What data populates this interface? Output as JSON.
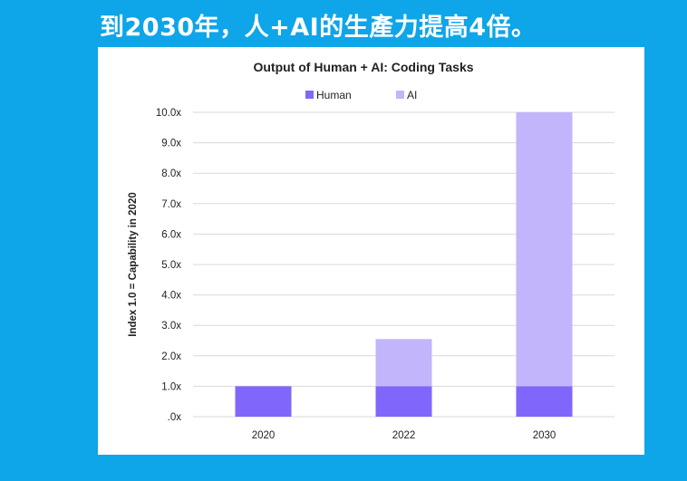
{
  "slide": {
    "headline": "到2030年，人+AI的生產力提高4倍。"
  },
  "colors": {
    "background": "#0ea5e9",
    "human": "#8066fa",
    "ai": "#c2b5fb",
    "grid": "#d9d9d9"
  },
  "chart_data": {
    "type": "bar",
    "stacked": true,
    "title": "Output of Human + AI: Coding Tasks",
    "xlabel": "",
    "ylabel": "Index 1.0 = Capability in 2020",
    "categories": [
      "2020",
      "2022",
      "2030"
    ],
    "series": [
      {
        "name": "Human",
        "values": [
          1.0,
          1.0,
          1.0
        ]
      },
      {
        "name": "AI",
        "values": [
          0,
          1.55,
          9.0
        ]
      }
    ],
    "ylim": [
      0,
      10
    ],
    "yticks": [
      0,
      1,
      2,
      3,
      4,
      5,
      6,
      7,
      8,
      9,
      10
    ],
    "ytick_labels": [
      ".0x",
      "1.0x",
      "2.0x",
      "3.0x",
      "4.0x",
      "5.0x",
      "6.0x",
      "7.0x",
      "8.0x",
      "9.0x",
      "10.0x"
    ],
    "grid": true,
    "legend_position": "top"
  }
}
